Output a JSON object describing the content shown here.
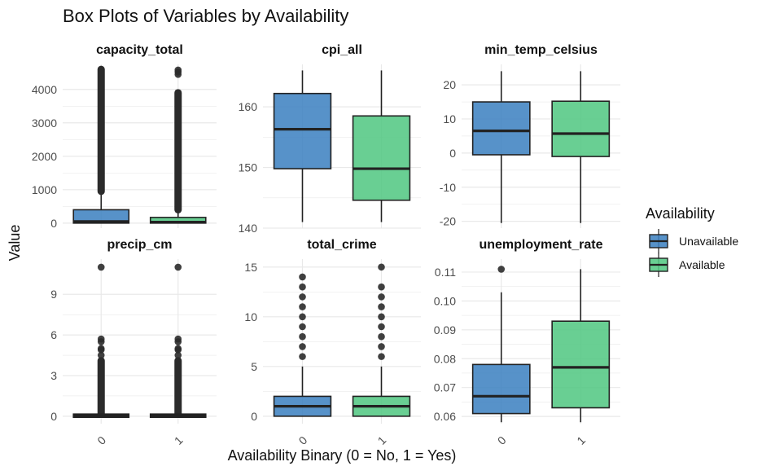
{
  "title": "Box Plots of Variables by Availability",
  "xlabel": "Availability Binary (0 = No, 1 = Yes)",
  "ylabel": "Value",
  "legend": {
    "title": "Availability",
    "entries": [
      {
        "label": "Unavailable",
        "color": "#3a7fc0"
      },
      {
        "label": "Available",
        "color": "#4fc780"
      }
    ]
  },
  "colors": {
    "box_alpha": 0.85,
    "outline": "#222222",
    "grid": "#e9e9e9"
  },
  "chart_data": {
    "type": "boxplot",
    "categories": [
      "0",
      "1"
    ],
    "facets": [
      {
        "name": "capacity_total",
        "ylim": [
          -150,
          4750
        ],
        "yticks": [
          0,
          1000,
          2000,
          3000,
          4000
        ],
        "ytick_labels": [
          "0",
          "1000",
          "2000",
          "3000",
          "4000"
        ],
        "groups": [
          {
            "category": "0",
            "q1": 0,
            "median": 50,
            "q3": 400,
            "whisker_low": 0,
            "whisker_high": 950,
            "outlier_range": [
              950,
              4600
            ]
          },
          {
            "category": "1",
            "q1": 0,
            "median": 30,
            "q3": 170,
            "whisker_low": 0,
            "whisker_high": 400,
            "outlier_range": [
              400,
              3900
            ],
            "outliers": [
              4450,
              4520,
              4580
            ]
          }
        ]
      },
      {
        "name": "cpi_all",
        "ylim": [
          140,
          167
        ],
        "yticks": [
          140,
          150,
          160
        ],
        "ytick_labels": [
          "140",
          "150",
          "160"
        ],
        "groups": [
          {
            "category": "0",
            "q1": 149.8,
            "median": 156.3,
            "q3": 162.2,
            "whisker_low": 141,
            "whisker_high": 166
          },
          {
            "category": "1",
            "q1": 144.6,
            "median": 149.8,
            "q3": 158.5,
            "whisker_low": 141,
            "whisker_high": 166
          }
        ]
      },
      {
        "name": "min_temp_celsius",
        "ylim": [
          -22,
          26
        ],
        "yticks": [
          -20,
          -10,
          0,
          10,
          20
        ],
        "ytick_labels": [
          "-20",
          "-10",
          "0",
          "10",
          "20"
        ],
        "groups": [
          {
            "category": "0",
            "q1": -0.5,
            "median": 6.5,
            "q3": 15.0,
            "whisker_low": -20.5,
            "whisker_high": 24
          },
          {
            "category": "1",
            "q1": -1.0,
            "median": 5.7,
            "q3": 15.2,
            "whisker_low": -20.5,
            "whisker_high": 24
          }
        ]
      },
      {
        "name": "precip_cm",
        "ylim": [
          -0.55,
          11.6
        ],
        "yticks": [
          0,
          3,
          6,
          9
        ],
        "ytick_labels": [
          "0",
          "3",
          "6",
          "9"
        ],
        "groups": [
          {
            "category": "0",
            "q1": 0,
            "median": 0.02,
            "q3": 0.08,
            "whisker_low": 0,
            "whisker_high": 0.2,
            "outlier_range": [
              0.2,
              4.1
            ],
            "outliers": [
              4.5,
              4.9,
              5.0,
              5.5,
              5.7,
              11.0
            ]
          },
          {
            "category": "1",
            "q1": 0,
            "median": 0.02,
            "q3": 0.08,
            "whisker_low": 0,
            "whisker_high": 0.2,
            "outlier_range": [
              0.2,
              4.1
            ],
            "outliers": [
              4.5,
              4.9,
              5.0,
              5.5,
              5.7,
              11.0
            ]
          }
        ]
      },
      {
        "name": "total_crime",
        "ylim": [
          -0.75,
          15.8
        ],
        "yticks": [
          0,
          5,
          10,
          15
        ],
        "ytick_labels": [
          "0",
          "5",
          "10",
          "15"
        ],
        "groups": [
          {
            "category": "0",
            "q1": 0,
            "median": 1,
            "q3": 2,
            "whisker_low": 0,
            "whisker_high": 5,
            "outliers": [
              6,
              7,
              8,
              9,
              10,
              11,
              12,
              13,
              14
            ]
          },
          {
            "category": "1",
            "q1": 0,
            "median": 1,
            "q3": 2,
            "whisker_low": 0,
            "whisker_high": 5,
            "outliers": [
              6,
              7,
              8,
              9,
              10,
              11,
              12,
              13,
              15
            ]
          }
        ]
      },
      {
        "name": "unemployment_rate",
        "ylim": [
          0.0575,
          0.1145
        ],
        "yticks": [
          0.06,
          0.07,
          0.08,
          0.09,
          0.1,
          0.11
        ],
        "ytick_labels": [
          "0.06",
          "0.07",
          "0.08",
          "0.09",
          "0.10",
          "0.11"
        ],
        "groups": [
          {
            "category": "0",
            "q1": 0.061,
            "median": 0.067,
            "q3": 0.078,
            "whisker_low": 0.058,
            "whisker_high": 0.103,
            "outliers": [
              0.111
            ]
          },
          {
            "category": "1",
            "q1": 0.063,
            "median": 0.077,
            "q3": 0.093,
            "whisker_low": 0.058,
            "whisker_high": 0.111
          }
        ]
      }
    ]
  }
}
